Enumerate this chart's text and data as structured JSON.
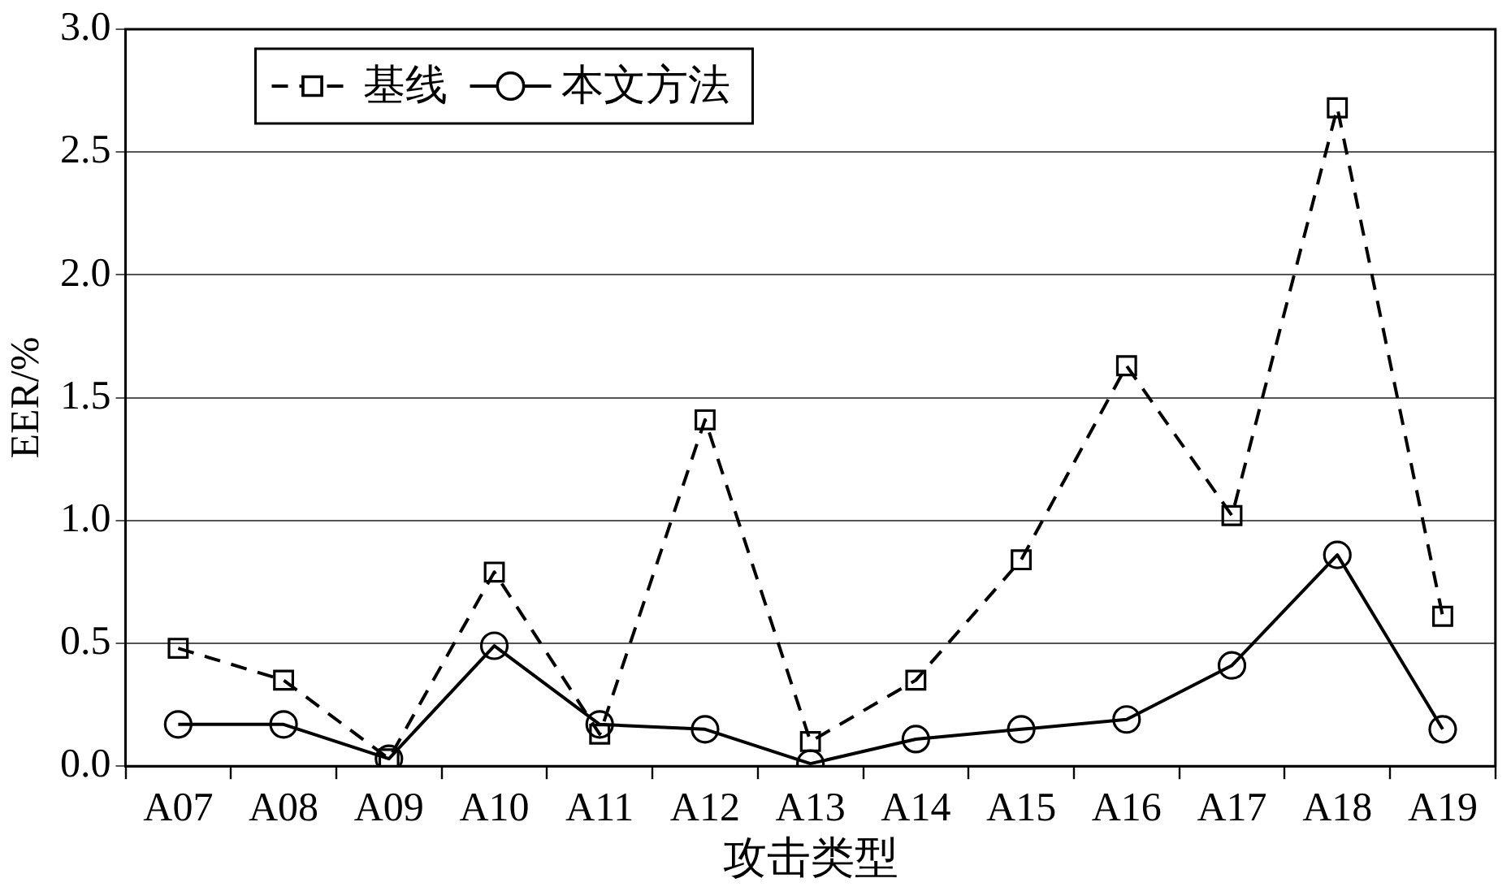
{
  "chart_data": {
    "type": "line",
    "xlabel": "攻击类型",
    "ylabel": "EER/%",
    "categories": [
      "A07",
      "A08",
      "A09",
      "A10",
      "A11",
      "A12",
      "A13",
      "A14",
      "A15",
      "A16",
      "A17",
      "A18",
      "A19"
    ],
    "series": [
      {
        "name": "基线",
        "color": "#000000",
        "marker": "square",
        "line_style": "dashed",
        "values": [
          0.48,
          0.35,
          0.03,
          0.79,
          0.13,
          1.41,
          0.1,
          0.35,
          0.84,
          1.63,
          1.02,
          2.68,
          0.61
        ]
      },
      {
        "name": "本文方法",
        "color": "#000000",
        "marker": "circle",
        "line_style": "solid",
        "values": [
          0.17,
          0.17,
          0.03,
          0.49,
          0.17,
          0.15,
          0.01,
          0.11,
          0.15,
          0.19,
          0.41,
          0.86,
          0.15
        ]
      }
    ],
    "ylim": [
      0,
      3
    ],
    "yticks": [
      {
        "value": 0,
        "label": "0.0"
      },
      {
        "value": 0.5,
        "label": "0.5"
      },
      {
        "value": 1,
        "label": "1.0"
      },
      {
        "value": 1.5,
        "label": "1.5"
      },
      {
        "value": 2,
        "label": "2.0"
      },
      {
        "value": 2.5,
        "label": "2.5"
      },
      {
        "value": 3,
        "label": "3.0"
      }
    ],
    "grid": "y",
    "legend": "top left"
  }
}
